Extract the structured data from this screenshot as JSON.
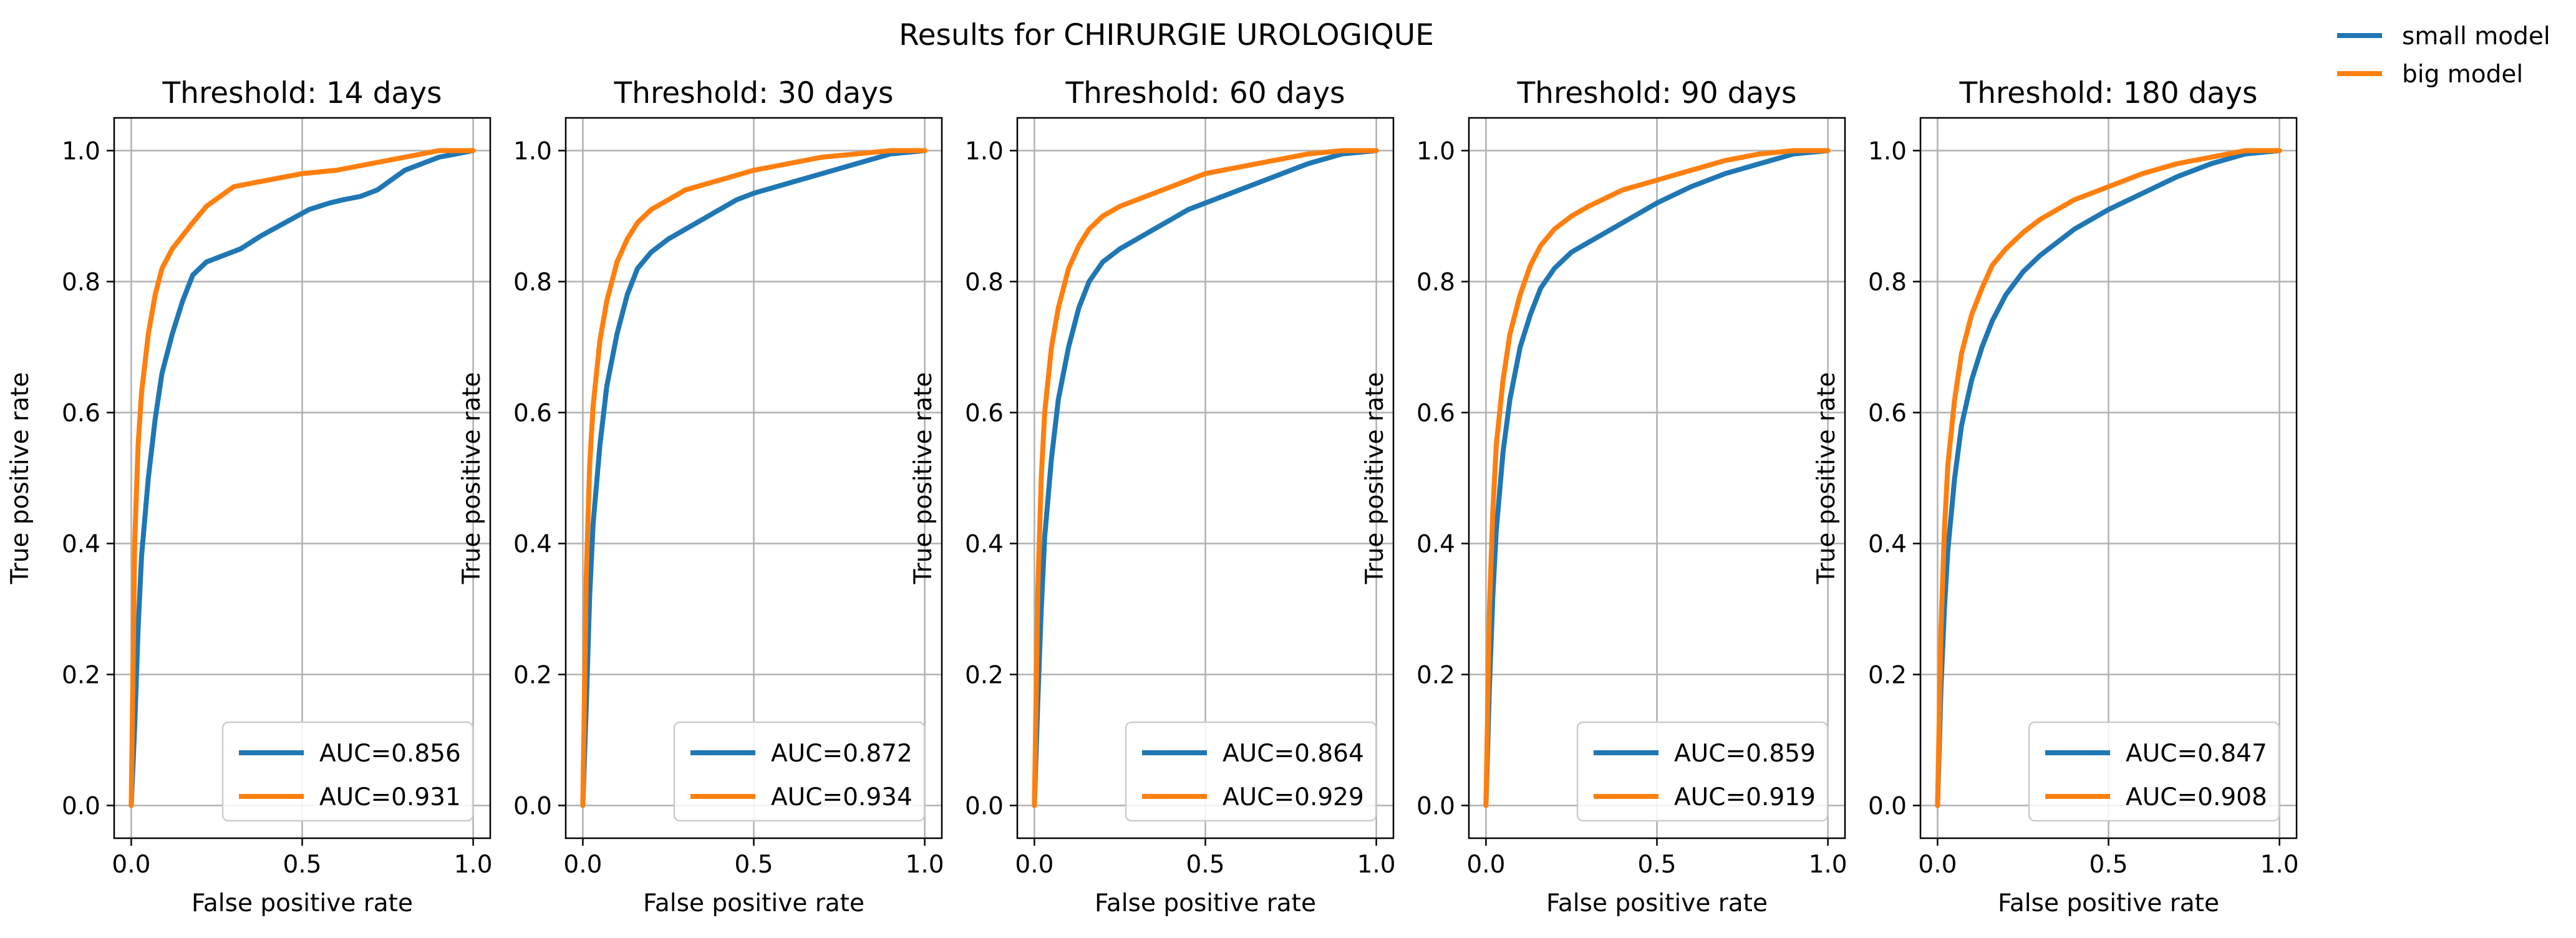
{
  "figure": {
    "suptitle": "Results for CHIRURGIE UROLOGIQUE",
    "legend": {
      "placement": "top-right",
      "items": [
        {
          "label": "small model",
          "color": "#1f77b4"
        },
        {
          "label": "big model",
          "color": "#ff7f0e"
        }
      ]
    }
  },
  "chart_data": [
    {
      "type": "line",
      "title": "Threshold: 14 days",
      "xlabel": "False positive rate",
      "ylabel": "True positive rate",
      "xlim": [
        -0.05,
        1.05
      ],
      "ylim": [
        -0.05,
        1.05
      ],
      "xticks": [
        "0.0",
        "0.5",
        "1.0"
      ],
      "yticks": [
        "0.0",
        "0.2",
        "0.4",
        "0.6",
        "0.8",
        "1.0"
      ],
      "grid": true,
      "legend_placement": "lower-right",
      "series": [
        {
          "name": "AUC=0.856",
          "color": "#1f77b4",
          "x": [
            0,
            0.01,
            0.02,
            0.03,
            0.05,
            0.07,
            0.09,
            0.12,
            0.15,
            0.18,
            0.22,
            0.27,
            0.32,
            0.38,
            0.45,
            0.52,
            0.58,
            0.62,
            0.67,
            0.72,
            0.76,
            0.8,
            0.85,
            0.9,
            0.95,
            1.0
          ],
          "y": [
            0,
            0.12,
            0.27,
            0.38,
            0.5,
            0.59,
            0.66,
            0.72,
            0.77,
            0.81,
            0.83,
            0.84,
            0.85,
            0.87,
            0.89,
            0.91,
            0.92,
            0.925,
            0.93,
            0.94,
            0.955,
            0.97,
            0.98,
            0.99,
            0.995,
            1.0
          ]
        },
        {
          "name": "AUC=0.931",
          "color": "#ff7f0e",
          "x": [
            0,
            0.01,
            0.02,
            0.03,
            0.05,
            0.07,
            0.09,
            0.12,
            0.15,
            0.18,
            0.22,
            0.26,
            0.3,
            0.35,
            0.4,
            0.5,
            0.6,
            0.7,
            0.8,
            0.9,
            1.0
          ],
          "y": [
            0,
            0.4,
            0.55,
            0.63,
            0.72,
            0.78,
            0.82,
            0.85,
            0.87,
            0.89,
            0.915,
            0.93,
            0.945,
            0.95,
            0.955,
            0.965,
            0.97,
            0.98,
            0.99,
            1.0,
            1.0
          ]
        }
      ]
    },
    {
      "type": "line",
      "title": "Threshold: 30 days",
      "xlabel": "False positive rate",
      "ylabel": "True positive rate",
      "xlim": [
        -0.05,
        1.05
      ],
      "ylim": [
        -0.05,
        1.05
      ],
      "xticks": [
        "0.0",
        "0.5",
        "1.0"
      ],
      "yticks": [
        "0.0",
        "0.2",
        "0.4",
        "0.6",
        "0.8",
        "1.0"
      ],
      "grid": true,
      "legend_placement": "lower-right",
      "series": [
        {
          "name": "AUC=0.872",
          "color": "#1f77b4",
          "x": [
            0,
            0.01,
            0.02,
            0.03,
            0.05,
            0.07,
            0.1,
            0.13,
            0.16,
            0.2,
            0.25,
            0.3,
            0.35,
            0.4,
            0.45,
            0.5,
            0.6,
            0.7,
            0.8,
            0.9,
            1.0
          ],
          "y": [
            0,
            0.15,
            0.32,
            0.43,
            0.55,
            0.64,
            0.72,
            0.78,
            0.82,
            0.845,
            0.865,
            0.88,
            0.895,
            0.91,
            0.925,
            0.935,
            0.95,
            0.965,
            0.98,
            0.995,
            1.0
          ]
        },
        {
          "name": "AUC=0.934",
          "color": "#ff7f0e",
          "x": [
            0,
            0.01,
            0.02,
            0.03,
            0.05,
            0.07,
            0.1,
            0.13,
            0.16,
            0.2,
            0.25,
            0.3,
            0.4,
            0.5,
            0.6,
            0.7,
            0.8,
            0.9,
            1.0
          ],
          "y": [
            0,
            0.35,
            0.52,
            0.61,
            0.71,
            0.77,
            0.83,
            0.865,
            0.89,
            0.91,
            0.925,
            0.94,
            0.955,
            0.97,
            0.98,
            0.99,
            0.995,
            1.0,
            1.0
          ]
        }
      ]
    },
    {
      "type": "line",
      "title": "Threshold: 60 days",
      "xlabel": "False positive rate",
      "ylabel": "True positive rate",
      "xlim": [
        -0.05,
        1.05
      ],
      "ylim": [
        -0.05,
        1.05
      ],
      "xticks": [
        "0.0",
        "0.5",
        "1.0"
      ],
      "yticks": [
        "0.0",
        "0.2",
        "0.4",
        "0.6",
        "0.8",
        "1.0"
      ],
      "grid": true,
      "legend_placement": "lower-right",
      "series": [
        {
          "name": "AUC=0.864",
          "color": "#1f77b4",
          "x": [
            0,
            0.01,
            0.02,
            0.03,
            0.05,
            0.07,
            0.1,
            0.13,
            0.16,
            0.2,
            0.25,
            0.3,
            0.35,
            0.4,
            0.45,
            0.5,
            0.6,
            0.7,
            0.8,
            0.9,
            1.0
          ],
          "y": [
            0,
            0.16,
            0.3,
            0.41,
            0.53,
            0.62,
            0.7,
            0.76,
            0.8,
            0.83,
            0.85,
            0.865,
            0.88,
            0.895,
            0.91,
            0.92,
            0.94,
            0.96,
            0.98,
            0.995,
            1.0
          ]
        },
        {
          "name": "AUC=0.929",
          "color": "#ff7f0e",
          "x": [
            0,
            0.01,
            0.02,
            0.03,
            0.05,
            0.07,
            0.1,
            0.13,
            0.16,
            0.2,
            0.25,
            0.3,
            0.4,
            0.5,
            0.6,
            0.7,
            0.8,
            0.9,
            1.0
          ],
          "y": [
            0,
            0.33,
            0.5,
            0.6,
            0.7,
            0.76,
            0.82,
            0.855,
            0.88,
            0.9,
            0.915,
            0.925,
            0.945,
            0.965,
            0.975,
            0.985,
            0.995,
            1.0,
            1.0
          ]
        }
      ]
    },
    {
      "type": "line",
      "title": "Threshold: 90 days",
      "xlabel": "False positive rate",
      "ylabel": "True positive rate",
      "xlim": [
        -0.05,
        1.05
      ],
      "ylim": [
        -0.05,
        1.05
      ],
      "xticks": [
        "0.0",
        "0.5",
        "1.0"
      ],
      "yticks": [
        "0.0",
        "0.2",
        "0.4",
        "0.6",
        "0.8",
        "1.0"
      ],
      "grid": true,
      "legend_placement": "lower-right",
      "series": [
        {
          "name": "AUC=0.859",
          "color": "#1f77b4",
          "x": [
            0,
            0.01,
            0.02,
            0.03,
            0.05,
            0.07,
            0.1,
            0.13,
            0.16,
            0.2,
            0.25,
            0.3,
            0.35,
            0.4,
            0.45,
            0.5,
            0.6,
            0.7,
            0.8,
            0.9,
            1.0
          ],
          "y": [
            0,
            0.18,
            0.32,
            0.42,
            0.54,
            0.62,
            0.7,
            0.75,
            0.79,
            0.82,
            0.845,
            0.86,
            0.875,
            0.89,
            0.905,
            0.92,
            0.945,
            0.965,
            0.98,
            0.995,
            1.0
          ]
        },
        {
          "name": "AUC=0.919",
          "color": "#ff7f0e",
          "x": [
            0,
            0.01,
            0.02,
            0.03,
            0.05,
            0.07,
            0.1,
            0.13,
            0.16,
            0.2,
            0.25,
            0.3,
            0.4,
            0.5,
            0.6,
            0.7,
            0.8,
            0.9,
            1.0
          ],
          "y": [
            0,
            0.3,
            0.45,
            0.55,
            0.65,
            0.72,
            0.78,
            0.825,
            0.855,
            0.88,
            0.9,
            0.915,
            0.94,
            0.955,
            0.97,
            0.985,
            0.995,
            1.0,
            1.0
          ]
        }
      ]
    },
    {
      "type": "line",
      "title": "Threshold: 180 days",
      "xlabel": "False positive rate",
      "ylabel": "True positive rate",
      "xlim": [
        -0.05,
        1.05
      ],
      "ylim": [
        -0.05,
        1.05
      ],
      "xticks": [
        "0.0",
        "0.5",
        "1.0"
      ],
      "yticks": [
        "0.0",
        "0.2",
        "0.4",
        "0.6",
        "0.8",
        "1.0"
      ],
      "grid": true,
      "legend_placement": "lower-right",
      "series": [
        {
          "name": "AUC=0.847",
          "color": "#1f77b4",
          "x": [
            0,
            0.01,
            0.02,
            0.03,
            0.05,
            0.07,
            0.1,
            0.13,
            0.16,
            0.2,
            0.25,
            0.3,
            0.35,
            0.4,
            0.5,
            0.6,
            0.7,
            0.8,
            0.9,
            1.0
          ],
          "y": [
            0,
            0.18,
            0.3,
            0.39,
            0.5,
            0.58,
            0.65,
            0.7,
            0.74,
            0.78,
            0.815,
            0.84,
            0.86,
            0.88,
            0.91,
            0.935,
            0.96,
            0.98,
            0.995,
            1.0
          ]
        },
        {
          "name": "AUC=0.908",
          "color": "#ff7f0e",
          "x": [
            0,
            0.01,
            0.02,
            0.03,
            0.05,
            0.07,
            0.1,
            0.13,
            0.16,
            0.2,
            0.25,
            0.3,
            0.4,
            0.5,
            0.6,
            0.7,
            0.8,
            0.9,
            1.0
          ],
          "y": [
            0,
            0.27,
            0.42,
            0.52,
            0.62,
            0.69,
            0.75,
            0.79,
            0.825,
            0.85,
            0.875,
            0.895,
            0.925,
            0.945,
            0.965,
            0.98,
            0.99,
            1.0,
            1.0
          ]
        }
      ]
    }
  ]
}
